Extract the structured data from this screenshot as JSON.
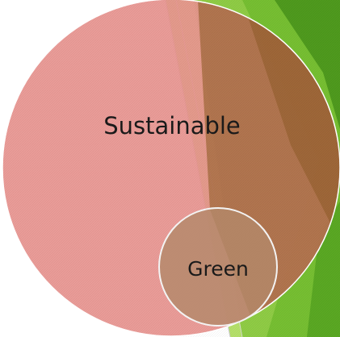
{
  "diagram": {
    "type": "nested-venn",
    "circles": [
      {
        "id": "outer",
        "label": "Sustainable",
        "fill": "#e8948f"
      },
      {
        "id": "inner",
        "label": "Green",
        "fill": "#b3896a"
      }
    ],
    "colors": {
      "background": "#ffffff",
      "accent_green_light": "#b5e06a",
      "accent_green": "#76bf32",
      "accent_green_dark": "#4f9a1e",
      "overlay_brown": "#8a5a1f",
      "circle_outline": "#ffffff"
    }
  }
}
